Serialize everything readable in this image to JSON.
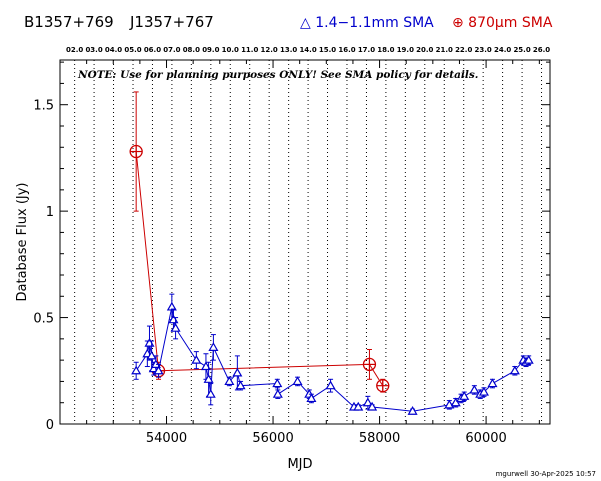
{
  "header": {
    "source_b1950": "B1357+769",
    "source_j2000": "J1357+767",
    "legend_blue": "△ 1.4−1.1mm SMA",
    "legend_red": "⊕ 870μm SMA"
  },
  "note": "NOTE: Use for planning purposes ONLY!  See SMA policy for details.",
  "footer": "mgurwell 30-Apr-2025 10:57",
  "colors": {
    "blue": "#0000cc",
    "red": "#cc0000",
    "grid": "#000000",
    "text": "#000000"
  },
  "chart_data": {
    "type": "scatter",
    "xlabel": "MJD",
    "ylabel": "Database Flux (Jy)",
    "xlim": [
      52000,
      61200
    ],
    "ylim": [
      0,
      1.71
    ],
    "xticks": [
      "54000",
      "56000",
      "58000",
      "60000"
    ],
    "yticks": [
      "0",
      "0.5",
      "1",
      "1.5"
    ],
    "grid": "vertical dotted lines at each year start",
    "legend_position": "top",
    "year_labels": [
      "02.0",
      "03.0",
      "04.0",
      "05.0",
      "06.0",
      "07.0",
      "08.0",
      "09.0",
      "10.0",
      "11.0",
      "12.0",
      "13.0",
      "14.0",
      "15.0",
      "16.0",
      "17.0",
      "18.0",
      "19.0",
      "20.0",
      "21.0",
      "22.0",
      "23.0",
      "24.0",
      "25.0",
      "26.0"
    ],
    "year_mjd": [
      52275,
      52640,
      53005,
      53371,
      53736,
      54101,
      54466,
      54832,
      55197,
      55562,
      55927,
      56293,
      56658,
      57023,
      57388,
      57754,
      58119,
      58484,
      58849,
      59215,
      59580,
      59945,
      60310,
      60676,
      61041
    ],
    "series": [
      {
        "name": "1.4−1.1mm SMA",
        "marker": "triangle",
        "points": [
          {
            "x": 53430,
            "y": 0.25,
            "err": 0.04
          },
          {
            "x": 53640,
            "y": 0.33,
            "err": 0.06
          },
          {
            "x": 53680,
            "y": 0.38,
            "err": 0.08
          },
          {
            "x": 53720,
            "y": 0.32,
            "err": 0.07
          },
          {
            "x": 53760,
            "y": 0.26,
            "err": 0.03
          },
          {
            "x": 53800,
            "y": 0.28,
            "err": 0.04
          },
          {
            "x": 53850,
            "y": 0.25,
            "err": 0.03
          },
          {
            "x": 54100,
            "y": 0.55,
            "err": 0.06
          },
          {
            "x": 54130,
            "y": 0.49,
            "err": 0.05
          },
          {
            "x": 54170,
            "y": 0.45,
            "err": 0.05
          },
          {
            "x": 54560,
            "y": 0.3,
            "err": 0.04
          },
          {
            "x": 54740,
            "y": 0.27,
            "err": 0.06
          },
          {
            "x": 54790,
            "y": 0.21,
            "err": 0.08
          },
          {
            "x": 54830,
            "y": 0.14,
            "err": 0.05
          },
          {
            "x": 54880,
            "y": 0.36,
            "err": 0.06
          },
          {
            "x": 55180,
            "y": 0.2,
            "err": 0.02
          },
          {
            "x": 55330,
            "y": 0.24,
            "err": 0.08
          },
          {
            "x": 55390,
            "y": 0.18,
            "err": 0.02
          },
          {
            "x": 56080,
            "y": 0.19,
            "err": 0.02
          },
          {
            "x": 56090,
            "y": 0.14,
            "err": 0.02
          },
          {
            "x": 56460,
            "y": 0.2,
            "err": 0.02
          },
          {
            "x": 56680,
            "y": 0.14,
            "err": 0.02
          },
          {
            "x": 56720,
            "y": 0.12,
            "err": 0.02
          },
          {
            "x": 57080,
            "y": 0.18,
            "err": 0.03
          },
          {
            "x": 57520,
            "y": 0.08,
            "err": 0.01
          },
          {
            "x": 57600,
            "y": 0.08,
            "err": 0.01
          },
          {
            "x": 57780,
            "y": 0.1,
            "err": 0.03
          },
          {
            "x": 57860,
            "y": 0.08,
            "err": 0.01
          },
          {
            "x": 58620,
            "y": 0.06,
            "err": 0.01
          },
          {
            "x": 59310,
            "y": 0.09,
            "err": 0.02
          },
          {
            "x": 59430,
            "y": 0.1,
            "err": 0.02
          },
          {
            "x": 59530,
            "y": 0.12,
            "err": 0.02
          },
          {
            "x": 59590,
            "y": 0.13,
            "err": 0.02
          },
          {
            "x": 59780,
            "y": 0.16,
            "err": 0.02
          },
          {
            "x": 59890,
            "y": 0.14,
            "err": 0.02
          },
          {
            "x": 59960,
            "y": 0.15,
            "err": 0.02
          },
          {
            "x": 60120,
            "y": 0.19,
            "err": 0.02
          },
          {
            "x": 60540,
            "y": 0.25,
            "err": 0.02
          },
          {
            "x": 60700,
            "y": 0.3,
            "err": 0.02
          },
          {
            "x": 60750,
            "y": 0.29,
            "err": 0.02
          },
          {
            "x": 60800,
            "y": 0.3,
            "err": 0.02
          }
        ]
      },
      {
        "name": "870μm SMA",
        "marker": "circle-plus",
        "points": [
          {
            "x": 53430,
            "y": 1.28,
            "err": 0.28
          },
          {
            "x": 53850,
            "y": 0.25,
            "err": 0.04
          },
          {
            "x": 57810,
            "y": 0.28,
            "err": 0.07
          },
          {
            "x": 58060,
            "y": 0.18,
            "err": 0.03
          }
        ]
      }
    ]
  }
}
